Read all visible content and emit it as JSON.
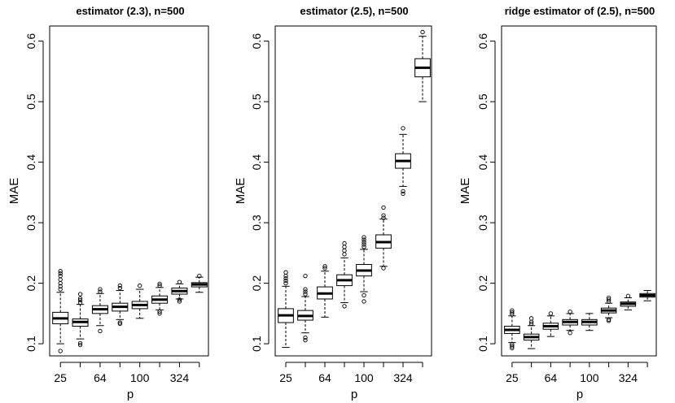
{
  "chart_data": [
    {
      "type": "boxplot",
      "title": "estimator (2.3),   n=500",
      "xlabel": "p",
      "ylabel": "MAE",
      "ylim": [
        0.08,
        0.625
      ],
      "yticks": [
        0.1,
        0.2,
        0.3,
        0.4,
        0.5,
        0.6
      ],
      "xtick_labels": [
        "25",
        "64",
        "100",
        "324"
      ],
      "xtick_positions": [
        1,
        3,
        5,
        7
      ],
      "boxes": [
        {
          "q1": 0.133,
          "median": 0.142,
          "q3": 0.152,
          "whisker_low": 0.1,
          "whisker_high": 0.185,
          "outliers": [
            0.088,
            0.19,
            0.195,
            0.2,
            0.206,
            0.212,
            0.216,
            0.22
          ]
        },
        {
          "q1": 0.129,
          "median": 0.136,
          "q3": 0.141,
          "whisker_low": 0.108,
          "whisker_high": 0.165,
          "outliers": [
            0.098,
            0.101,
            0.168,
            0.172,
            0.175,
            0.182
          ]
        },
        {
          "q1": 0.15,
          "median": 0.157,
          "q3": 0.163,
          "whisker_low": 0.13,
          "whisker_high": 0.183,
          "outliers": [
            0.121,
            0.186,
            0.19
          ]
        },
        {
          "q1": 0.154,
          "median": 0.161,
          "q3": 0.167,
          "whisker_low": 0.14,
          "whisker_high": 0.188,
          "outliers": [
            0.133,
            0.135,
            0.192,
            0.196
          ]
        },
        {
          "q1": 0.158,
          "median": 0.164,
          "q3": 0.17,
          "whisker_low": 0.142,
          "whisker_high": 0.19,
          "outliers": [
            0.196
          ]
        },
        {
          "q1": 0.167,
          "median": 0.173,
          "q3": 0.179,
          "whisker_low": 0.156,
          "whisker_high": 0.193,
          "outliers": [
            0.15,
            0.153,
            0.196,
            0.199
          ]
        },
        {
          "q1": 0.182,
          "median": 0.187,
          "q3": 0.192,
          "whisker_low": 0.174,
          "whisker_high": 0.199,
          "outliers": [
            0.17,
            0.173,
            0.202
          ]
        },
        {
          "q1": 0.194,
          "median": 0.198,
          "q3": 0.201,
          "whisker_low": 0.185,
          "whisker_high": 0.21,
          "outliers": [
            0.212
          ]
        }
      ]
    },
    {
      "type": "boxplot",
      "title": "estimator (2.5),   n=500",
      "xlabel": "p",
      "ylabel": "MAE",
      "ylim": [
        0.08,
        0.625
      ],
      "yticks": [
        0.1,
        0.2,
        0.3,
        0.4,
        0.5,
        0.6
      ],
      "xtick_labels": [
        "25",
        "64",
        "100",
        "324"
      ],
      "xtick_positions": [
        1,
        3,
        5,
        7
      ],
      "boxes": [
        {
          "q1": 0.135,
          "median": 0.147,
          "q3": 0.158,
          "whisker_low": 0.094,
          "whisker_high": 0.195,
          "outliers": [
            0.2,
            0.204,
            0.208,
            0.212,
            0.218
          ]
        },
        {
          "q1": 0.139,
          "median": 0.146,
          "q3": 0.155,
          "whisker_low": 0.118,
          "whisker_high": 0.178,
          "outliers": [
            0.106,
            0.11,
            0.182,
            0.186,
            0.19,
            0.212
          ]
        },
        {
          "q1": 0.174,
          "median": 0.183,
          "q3": 0.194,
          "whisker_low": 0.144,
          "whisker_high": 0.22,
          "outliers": [
            0.225,
            0.228
          ]
        },
        {
          "q1": 0.196,
          "median": 0.205,
          "q3": 0.214,
          "whisker_low": 0.168,
          "whisker_high": 0.242,
          "outliers": [
            0.162,
            0.248,
            0.254,
            0.26,
            0.266
          ]
        },
        {
          "q1": 0.212,
          "median": 0.221,
          "q3": 0.231,
          "whisker_low": 0.186,
          "whisker_high": 0.256,
          "outliers": [
            0.17,
            0.18,
            0.26,
            0.264,
            0.268,
            0.272,
            0.276
          ]
        },
        {
          "q1": 0.258,
          "median": 0.268,
          "q3": 0.28,
          "whisker_low": 0.228,
          "whisker_high": 0.306,
          "outliers": [
            0.225,
            0.308,
            0.312,
            0.325
          ]
        },
        {
          "q1": 0.39,
          "median": 0.402,
          "q3": 0.414,
          "whisker_low": 0.36,
          "whisker_high": 0.446,
          "outliers": [
            0.348,
            0.352,
            0.456
          ]
        },
        {
          "q1": 0.541,
          "median": 0.556,
          "q3": 0.571,
          "whisker_low": 0.5,
          "whisker_high": 0.608,
          "outliers": [
            0.615
          ]
        }
      ]
    },
    {
      "type": "boxplot",
      "title": "ridge estimator of (2.5),   n=500",
      "xlabel": "p",
      "ylabel": "MAE",
      "ylim": [
        0.08,
        0.625
      ],
      "yticks": [
        0.1,
        0.2,
        0.3,
        0.4,
        0.5,
        0.6
      ],
      "xtick_labels": [
        "25",
        "64",
        "100",
        "324"
      ],
      "xtick_positions": [
        1,
        3,
        5,
        7
      ],
      "boxes": [
        {
          "q1": 0.117,
          "median": 0.123,
          "q3": 0.129,
          "whisker_low": 0.102,
          "whisker_high": 0.146,
          "outliers": [
            0.093,
            0.096,
            0.099,
            0.149,
            0.152,
            0.155
          ]
        },
        {
          "q1": 0.106,
          "median": 0.111,
          "q3": 0.116,
          "whisker_low": 0.092,
          "whisker_high": 0.13,
          "outliers": [
            0.133,
            0.136,
            0.142
          ]
        },
        {
          "q1": 0.124,
          "median": 0.129,
          "q3": 0.134,
          "whisker_low": 0.112,
          "whisker_high": 0.146,
          "outliers": [
            0.15
          ]
        },
        {
          "q1": 0.131,
          "median": 0.136,
          "q3": 0.14,
          "whisker_low": 0.122,
          "whisker_high": 0.15,
          "outliers": [
            0.118,
            0.153
          ]
        },
        {
          "q1": 0.131,
          "median": 0.136,
          "q3": 0.14,
          "whisker_low": 0.122,
          "whisker_high": 0.15,
          "outliers": []
        },
        {
          "q1": 0.151,
          "median": 0.155,
          "q3": 0.159,
          "whisker_low": 0.143,
          "whisker_high": 0.167,
          "outliers": [
            0.138,
            0.14,
            0.17,
            0.173,
            0.176
          ]
        },
        {
          "q1": 0.162,
          "median": 0.166,
          "q3": 0.169,
          "whisker_low": 0.156,
          "whisker_high": 0.176,
          "outliers": [
            0.179
          ]
        },
        {
          "q1": 0.177,
          "median": 0.18,
          "q3": 0.183,
          "whisker_low": 0.171,
          "whisker_high": 0.188,
          "outliers": []
        }
      ]
    }
  ]
}
